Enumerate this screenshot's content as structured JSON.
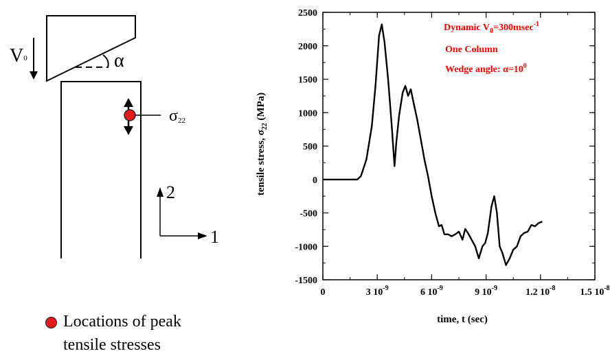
{
  "diagram": {
    "velocity_label_main": "V",
    "velocity_label_sub": "0",
    "angle_label": "α",
    "stress_label_main": "σ",
    "stress_label_sub": "22",
    "axis_label_1": "1",
    "axis_label_2": "2",
    "legend_line1": "Locations of peak",
    "legend_line2": "tensile stresses",
    "colors": {
      "marker": "#e21b1b",
      "lines": "#000000"
    }
  },
  "chart_data": {
    "type": "line",
    "xlabel": "time, t (sec)",
    "ylabel_main": "tensile stress, σ",
    "ylabel_sub": "22",
    "ylabel_unit": "(MPa)",
    "xlim": [
      0,
      1.5e-08
    ],
    "ylim": [
      -1500,
      2500
    ],
    "xtick_values": [
      0,
      3e-09,
      6e-09,
      9e-09,
      1.2e-08,
      1.5e-08
    ],
    "xtick_labels": [
      {
        "base": "0",
        "exp": ""
      },
      {
        "base": "3 10",
        "exp": "-9"
      },
      {
        "base": "6 10",
        "exp": "-9"
      },
      {
        "base": "9 10",
        "exp": "-9"
      },
      {
        "base": "1.2 10",
        "exp": "-8"
      },
      {
        "base": "1.5 10",
        "exp": "-8"
      }
    ],
    "ytick_values": [
      -1500,
      -1000,
      -500,
      0,
      500,
      1000,
      1500,
      2000,
      2500
    ],
    "ytick_labels": [
      "-1500",
      "-1000",
      "-500",
      "0",
      "500",
      "1000",
      "1500",
      "2000",
      "2500"
    ],
    "grid": false,
    "annotations": {
      "line1_main": "Dynamic V",
      "line1_sub": "0",
      "line1_rest": "=300msec",
      "line1_sup": "-1",
      "line2": "One Column",
      "line3_main": "Wedge angle: α=10",
      "line3_sup": "0",
      "color": "#ff0000"
    },
    "series": [
      {
        "color": "#000000",
        "x": [
          0,
          1.2e-09,
          1.9e-09,
          2.1e-09,
          2.4e-09,
          2.7e-09,
          2.9e-09,
          3.1e-09,
          3.25e-09,
          3.4e-09,
          3.6e-09,
          3.8e-09,
          3.95e-09,
          4.05e-09,
          4.2e-09,
          4.4e-09,
          4.55e-09,
          4.7e-09,
          4.85e-09,
          5e-09,
          5.2e-09,
          5.4e-09,
          5.6e-09,
          5.8e-09,
          6e-09,
          6.2e-09,
          6.4e-09,
          6.55e-09,
          6.7e-09,
          6.9e-09,
          7.1e-09,
          7.3e-09,
          7.5e-09,
          7.7e-09,
          7.85e-09,
          8e-09,
          8.2e-09,
          8.4e-09,
          8.6e-09,
          8.8e-09,
          8.95e-09,
          9.1e-09,
          9.3e-09,
          9.45e-09,
          9.6e-09,
          9.75e-09,
          9.9e-09,
          1.01e-08,
          1.03e-08,
          1.05e-08,
          1.07e-08,
          1.09e-08,
          1.11e-08,
          1.13e-08,
          1.15e-08,
          1.17e-08,
          1.19e-08,
          1.21e-08
        ],
        "y": [
          0,
          0,
          0,
          50,
          300,
          800,
          1400,
          2150,
          2320,
          2050,
          1500,
          800,
          200,
          550,
          950,
          1300,
          1400,
          1250,
          1350,
          1150,
          900,
          600,
          300,
          50,
          -250,
          -500,
          -700,
          -680,
          -820,
          -820,
          -850,
          -820,
          -780,
          -900,
          -740,
          -800,
          -900,
          -1000,
          -1180,
          -1000,
          -950,
          -800,
          -400,
          -250,
          -500,
          -1000,
          -1100,
          -1280,
          -1180,
          -1050,
          -1000,
          -850,
          -800,
          -780,
          -680,
          -700,
          -650,
          -630
        ]
      }
    ]
  }
}
